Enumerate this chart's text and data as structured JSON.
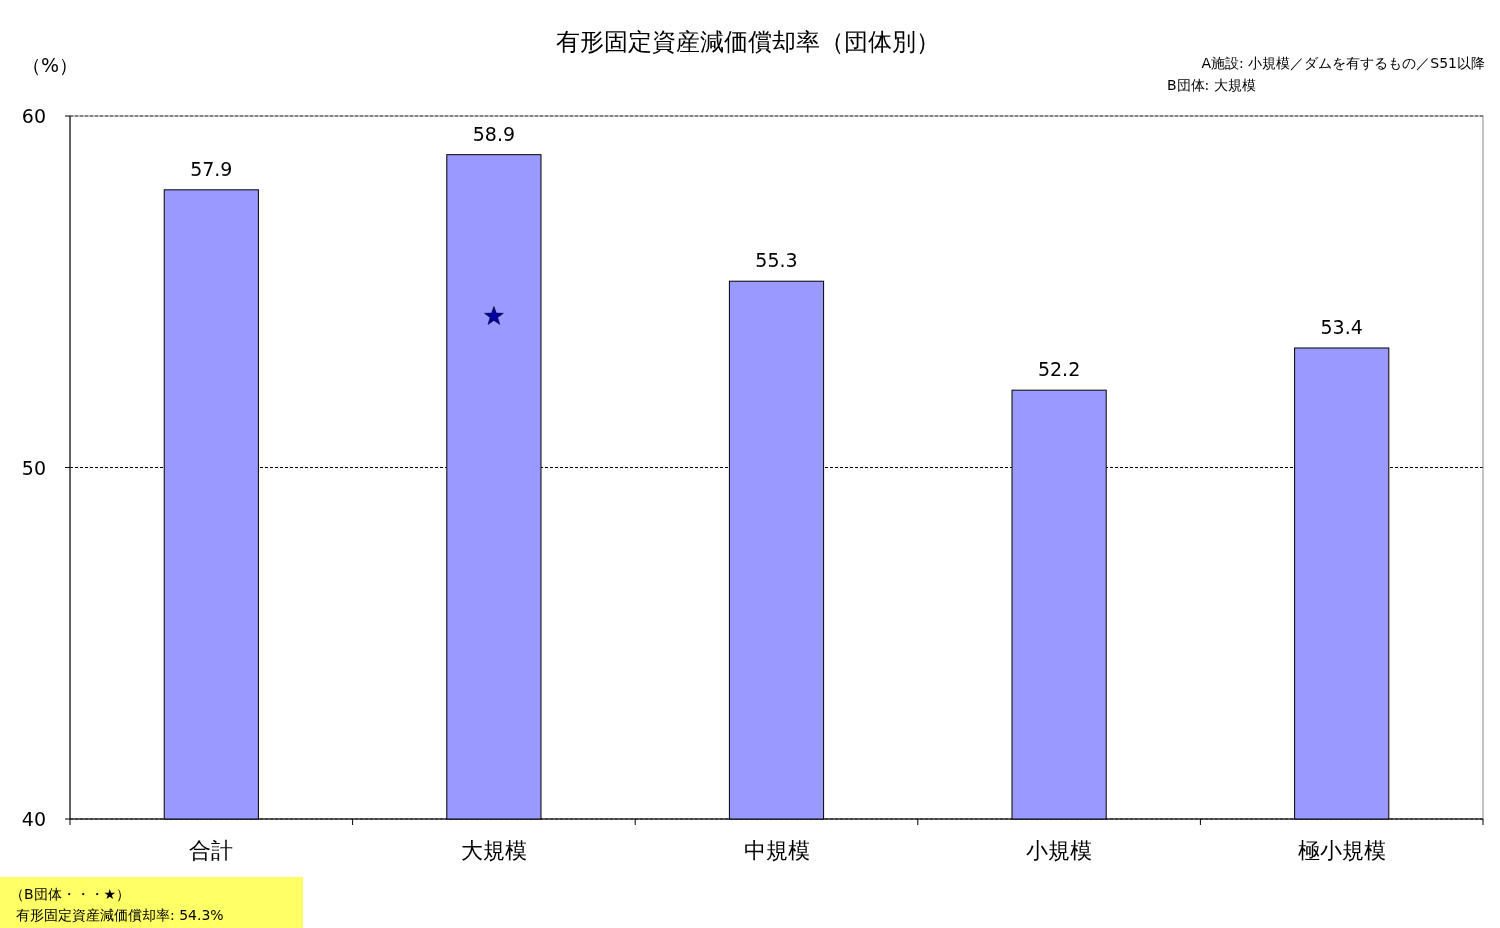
{
  "chart_data": {
    "type": "bar",
    "title": "有形固定資産減価償却率（団体別）",
    "ylabel": "（%）",
    "categories": [
      "合計",
      "大規模",
      "中規模",
      "小規模",
      "極小規模"
    ],
    "series": [
      {
        "type": "bar",
        "color": "#9999ff",
        "values": [
          57.9,
          58.9,
          55.3,
          52.2,
          53.4
        ],
        "value_labels": [
          "57.9",
          "58.9",
          "55.3",
          "52.2",
          "53.4"
        ]
      },
      {
        "type": "scatter",
        "color": "#0000a0",
        "x": [
          "大規模"
        ],
        "values": [
          54.3
        ],
        "marker": "star"
      }
    ],
    "ylim": [
      40,
      60
    ],
    "yticks": [
      40,
      50,
      60
    ],
    "grid": "y",
    "annotations": [
      "A施設: 小規模／ダムを有するもの／S51以降",
      "B団体: 大規模",
      "（B団体・・・★）",
      "有形固定資産減価償却率: 54.3%"
    ]
  }
}
